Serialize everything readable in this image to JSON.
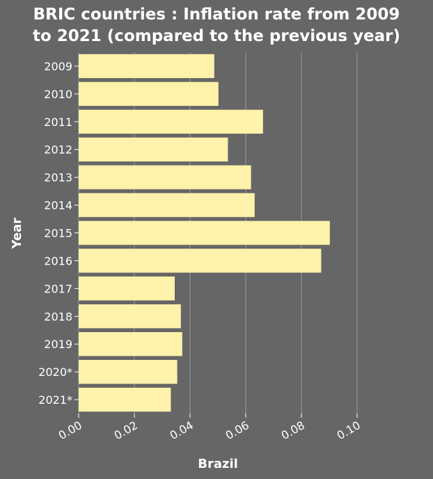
{
  "chart_data": {
    "type": "bar",
    "orientation": "horizontal",
    "title": "BRIC countries : Inflation rate from 2009 to 2021 (compared to the previous year)",
    "title_lines": [
      "BRIC countries : Inflation rate from 2009",
      "to 2021 (compared to the previous year)"
    ],
    "xlabel": "Brazil",
    "ylabel": "Year",
    "categories": [
      "2009",
      "2010",
      "2011",
      "2012",
      "2013",
      "2014",
      "2015",
      "2016",
      "2017",
      "2018",
      "2019",
      "2020*",
      "2021*"
    ],
    "values": [
      0.0487,
      0.0502,
      0.0662,
      0.0536,
      0.0619,
      0.0632,
      0.0902,
      0.0871,
      0.0345,
      0.0367,
      0.0372,
      0.0354,
      0.0331
    ],
    "xlim": [
      0,
      0.1
    ],
    "xticks": [
      "0.00",
      "0.02",
      "0.04",
      "0.06",
      "0.08",
      "0.10"
    ],
    "grid": true,
    "bar_color": "#fff2aa",
    "background_color": "#666666"
  }
}
